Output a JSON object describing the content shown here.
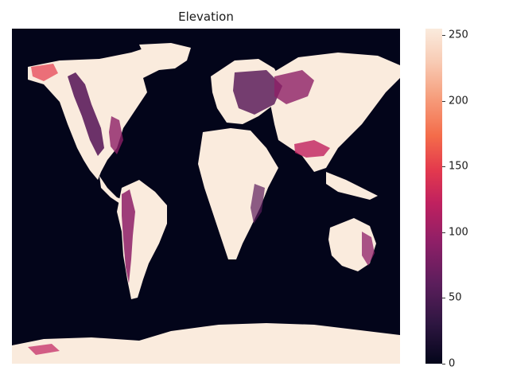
{
  "chart_data": {
    "type": "heatmap",
    "title": "Elevation",
    "xlabel": "",
    "ylabel": "",
    "colorbar": {
      "min": 0,
      "max": 255,
      "ticks": [
        "0",
        "50",
        "100",
        "150",
        "200",
        "250"
      ],
      "colormap": "rocket"
    },
    "colors": {
      "ocean": "#03051a",
      "land": "#faebdd",
      "mid_relief": "#5c1e5c",
      "high_relief": "#e43a4d"
    }
  }
}
